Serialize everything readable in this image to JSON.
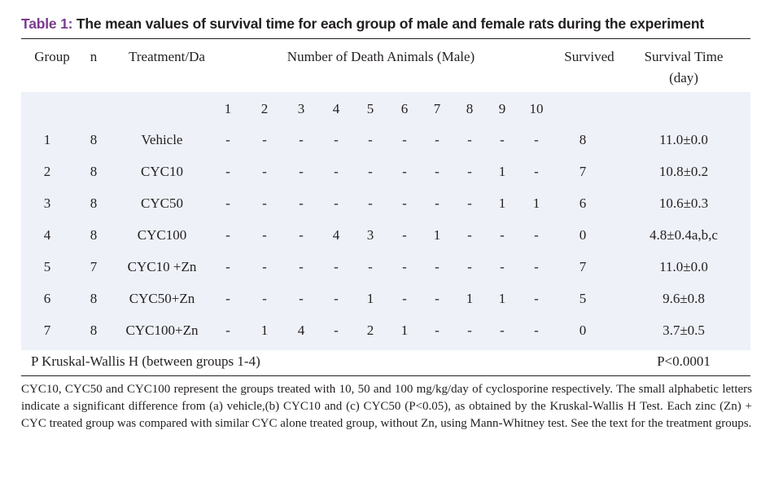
{
  "caption": {
    "label": "Table 1:",
    "text": " The mean values of survival time for each group of male and female rats during the experiment"
  },
  "columns": {
    "group": "Group",
    "n": "n",
    "treatment": "Treatment/Da",
    "deaths": "Number of Death Animals (Male)",
    "survived": "Survived",
    "survival_time_1": "Survival Time",
    "survival_time_2": "(day)"
  },
  "days": [
    "1",
    "2",
    "3",
    "4",
    "5",
    "6",
    "7",
    "8",
    "9",
    "10"
  ],
  "rows": [
    {
      "group": "1",
      "n": "8",
      "treatment": "Vehicle",
      "deaths": [
        "-",
        "-",
        "-",
        "-",
        "-",
        "-",
        "-",
        "-",
        "-",
        "-"
      ],
      "survived": "8",
      "time": "11.0±0.0"
    },
    {
      "group": "2",
      "n": "8",
      "treatment": "CYC10",
      "deaths": [
        "-",
        "-",
        "-",
        "-",
        "-",
        "-",
        "-",
        "-",
        "1",
        "-"
      ],
      "survived": "7",
      "time": "10.8±0.2"
    },
    {
      "group": "3",
      "n": "8",
      "treatment": "CYC50",
      "deaths": [
        "-",
        "-",
        "-",
        "-",
        "-",
        "-",
        "-",
        "-",
        "1",
        "1"
      ],
      "survived": "6",
      "time": "10.6±0.3"
    },
    {
      "group": "4",
      "n": "8",
      "treatment": "CYC100",
      "deaths": [
        "-",
        "-",
        "-",
        "4",
        "3",
        "-",
        "1",
        "-",
        "-",
        "-"
      ],
      "survived": "0",
      "time": "4.8±0.4a,b,c"
    },
    {
      "group": "5",
      "n": "7",
      "treatment": "CYC10 +Zn",
      "deaths": [
        "-",
        "-",
        "-",
        "-",
        "-",
        "-",
        "-",
        "-",
        "-",
        "-"
      ],
      "survived": "7",
      "time": "11.0±0.0"
    },
    {
      "group": "6",
      "n": "8",
      "treatment": "CYC50+Zn",
      "deaths": [
        "-",
        "-",
        "-",
        "-",
        "1",
        "-",
        "-",
        "1",
        "1",
        "-"
      ],
      "survived": "5",
      "time": "9.6±0.8"
    },
    {
      "group": "7",
      "n": "8",
      "treatment": "CYC100+Zn",
      "deaths": [
        "-",
        "1",
        "4",
        "-",
        "2",
        "1",
        "-",
        "-",
        "-",
        "-"
      ],
      "survived": "0",
      "time": "3.7±0.5"
    }
  ],
  "stat": {
    "label": "P Kruskal-Wallis H (between groups 1-4)",
    "value": "P<0.0001"
  },
  "footnote": "CYC10, CYC50 and CYC100 represent the groups treated with 10, 50 and 100 mg/kg/day of cyclosporine respectively. The small alphabetic letters indicate a significant difference from (a) vehicle,(b) CYC10 and (c) CYC50 (P<0.05), as obtained by the Kruskal-Wallis H Test. Each zinc (Zn) + CYC treated group was compared with similar CYC alone treated group, without Zn, using Mann-Whitney test. See the text for the treatment groups."
}
